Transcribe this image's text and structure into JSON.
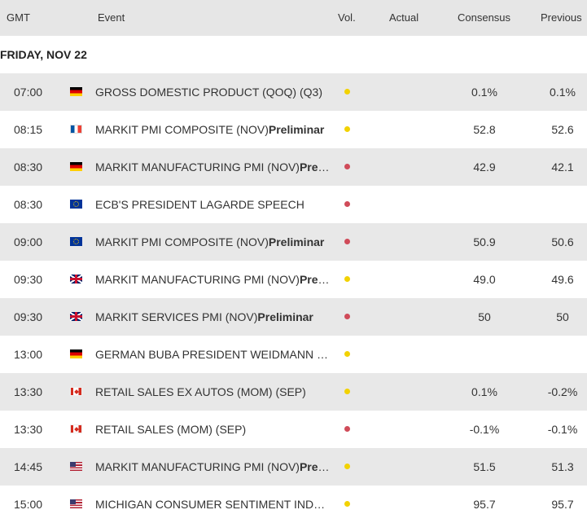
{
  "header": {
    "gmt": "GMT",
    "event": "Event",
    "vol": "Vol.",
    "actual": "Actual",
    "consensus": "Consensus",
    "previous": "Previous"
  },
  "date_label": "FRIDAY, NOV 22",
  "colors": {
    "yellow": "#f2d200",
    "red": "#d04b59"
  },
  "rows": [
    {
      "time": "07:00",
      "flag": "germany-flag-icon",
      "event": "GROSS DOMESTIC PRODUCT (QOQ) (Q3)",
      "suffix": "",
      "vol": "yellow",
      "actual": "",
      "consensus": "0.1%",
      "previous": "0.1%"
    },
    {
      "time": "08:15",
      "flag": "france-flag-icon",
      "event": "MARKIT PMI COMPOSITE (NOV)",
      "suffix": "Preliminar",
      "vol": "yellow",
      "actual": "",
      "consensus": "52.8",
      "previous": "52.6"
    },
    {
      "time": "08:30",
      "flag": "germany-flag-icon",
      "event": "MARKIT MANUFACTURING PMI (NOV)",
      "suffix": "Preli...",
      "vol": "red",
      "actual": "",
      "consensus": "42.9",
      "previous": "42.1"
    },
    {
      "time": "08:30",
      "flag": "eu-flag-icon",
      "event": "ECB'S PRESIDENT LAGARDE SPEECH",
      "suffix": "",
      "vol": "red",
      "actual": "",
      "consensus": "",
      "previous": ""
    },
    {
      "time": "09:00",
      "flag": "eu-flag-icon",
      "event": "MARKIT PMI COMPOSITE (NOV)",
      "suffix": "Preliminar",
      "vol": "red",
      "actual": "",
      "consensus": "50.9",
      "previous": "50.6"
    },
    {
      "time": "09:30",
      "flag": "uk-flag-icon",
      "event": "MARKIT MANUFACTURING PMI (NOV)",
      "suffix": "Preli...",
      "vol": "yellow",
      "actual": "",
      "consensus": "49.0",
      "previous": "49.6"
    },
    {
      "time": "09:30",
      "flag": "uk-flag-icon",
      "event": "MARKIT SERVICES PMI (NOV)",
      "suffix": "Preliminar",
      "vol": "red",
      "actual": "",
      "consensus": "50",
      "previous": "50"
    },
    {
      "time": "13:00",
      "flag": "germany-flag-icon",
      "event": "GERMAN BUBA PRESIDENT WEIDMANN S...",
      "suffix": "",
      "vol": "yellow",
      "actual": "",
      "consensus": "",
      "previous": ""
    },
    {
      "time": "13:30",
      "flag": "canada-flag-icon",
      "event": "RETAIL SALES EX AUTOS (MOM) (SEP)",
      "suffix": "",
      "vol": "yellow",
      "actual": "",
      "consensus": "0.1%",
      "previous": "-0.2%"
    },
    {
      "time": "13:30",
      "flag": "canada-flag-icon",
      "event": "RETAIL SALES (MOM) (SEP)",
      "suffix": "",
      "vol": "red",
      "actual": "",
      "consensus": "-0.1%",
      "previous": "-0.1%"
    },
    {
      "time": "14:45",
      "flag": "usa-flag-icon",
      "event": "MARKIT MANUFACTURING PMI (NOV)",
      "suffix": "Preli...",
      "vol": "yellow",
      "actual": "",
      "consensus": "51.5",
      "previous": "51.3"
    },
    {
      "time": "15:00",
      "flag": "usa-flag-icon",
      "event": "MICHIGAN CONSUMER SENTIMENT INDEX...",
      "suffix": "",
      "vol": "yellow",
      "actual": "",
      "consensus": "95.7",
      "previous": "95.7"
    }
  ]
}
